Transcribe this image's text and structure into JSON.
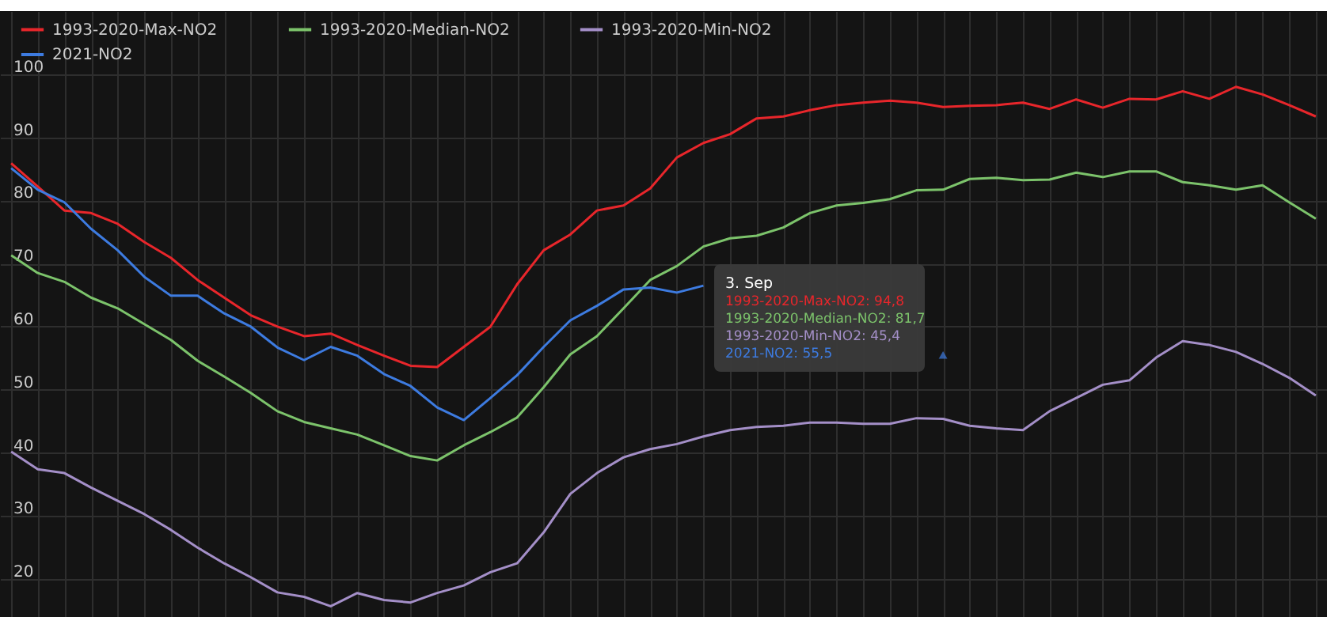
{
  "chart_data": {
    "type": "line",
    "categories": [
      null,
      null,
      null,
      null,
      null,
      null,
      null,
      null,
      null,
      null,
      null,
      null,
      null,
      null,
      null,
      null,
      null,
      null,
      null,
      null,
      null,
      null,
      null,
      null,
      null,
      null,
      null,
      null,
      null,
      null,
      null,
      null,
      null,
      null,
      null,
      null,
      null,
      null,
      null,
      null,
      null,
      null,
      null,
      null,
      null,
      null,
      null,
      null,
      null,
      null
    ],
    "series": [
      {
        "name": "1993-2020-Max-NO2",
        "color": "#e8262b",
        "values": [
          85.9,
          82.2,
          78.4,
          78.0,
          76.3,
          73.4,
          70.9,
          67.4,
          64.6,
          61.8,
          60.0,
          58.5,
          58.9,
          57.1,
          55.4,
          53.8,
          53.6,
          56.8,
          60.0,
          66.7,
          72.1,
          74.6,
          78.4,
          79.2,
          81.9,
          86.8,
          89.1,
          90.5,
          93.0,
          93.3,
          94.3,
          95.1,
          95.5,
          95.8,
          95.5,
          94.8,
          95.0,
          95.1,
          95.5,
          94.5,
          96.0,
          94.7,
          96.1,
          96.0,
          97.3,
          96.1,
          98.0,
          96.8,
          95.1,
          93.3
        ]
      },
      {
        "name": "1993-2020-Median-NO2",
        "color": "#7cc36b",
        "values": [
          71.3,
          68.5,
          67.1,
          64.6,
          62.9,
          60.4,
          57.9,
          54.6,
          52.1,
          49.5,
          46.6,
          44.9,
          43.9,
          42.9,
          41.2,
          39.5,
          38.8,
          41.2,
          43.3,
          45.6,
          50.4,
          55.6,
          58.5,
          62.9,
          67.4,
          69.6,
          72.7,
          74.0,
          74.4,
          75.7,
          78.0,
          79.2,
          79.6,
          80.2,
          81.6,
          81.7,
          83.4,
          83.6,
          83.2,
          83.3,
          84.4,
          83.7,
          84.6,
          84.6,
          82.9,
          82.4,
          81.7,
          82.4,
          79.7,
          77.1
        ]
      },
      {
        "name": "1993-2020-Min-NO2",
        "color": "#a48fc8",
        "values": [
          40.2,
          37.4,
          36.8,
          34.5,
          32.4,
          30.3,
          27.8,
          25.0,
          22.5,
          20.3,
          17.9,
          17.2,
          15.7,
          17.8,
          16.7,
          16.3,
          17.8,
          19.0,
          21.1,
          22.5,
          27.4,
          33.5,
          36.8,
          39.3,
          40.6,
          41.4,
          42.6,
          43.6,
          44.1,
          44.3,
          44.8,
          44.8,
          44.6,
          44.6,
          45.5,
          45.4,
          44.3,
          43.9,
          43.6,
          46.6,
          48.7,
          50.8,
          51.5,
          55.1,
          57.7,
          57.1,
          56.0,
          54.1,
          51.9,
          49.1
        ]
      },
      {
        "name": "2021-NO2",
        "color": "#3d7be0",
        "values": [
          85.1,
          81.7,
          79.7,
          75.5,
          72.1,
          67.9,
          64.9,
          64.9,
          62.1,
          60.0,
          56.7,
          54.7,
          56.8,
          55.4,
          52.5,
          50.6,
          47.2,
          45.2,
          48.7,
          52.3,
          56.8,
          61.0,
          63.3,
          65.9,
          66.2,
          65.4,
          66.5,
          null,
          null,
          null,
          null,
          null,
          null,
          null,
          null,
          55.5,
          null,
          null,
          null,
          null,
          null,
          null,
          null,
          null,
          null,
          null,
          null,
          null,
          null,
          null
        ]
      }
    ],
    "ylim": [
      14,
      110
    ],
    "yticks": [
      20,
      30,
      40,
      50,
      60,
      70,
      80,
      90,
      100
    ],
    "grid": true,
    "legend": "top left",
    "tick_labels": "y",
    "annotations": [
      "3. Sep",
      "1993-2020-Max-NO2: 94,8",
      "1993-2020-Median-NO2: 81,7",
      "1993-2020-Min-NO2: 45,4",
      "2021-NO2: 55,5"
    ]
  }
}
